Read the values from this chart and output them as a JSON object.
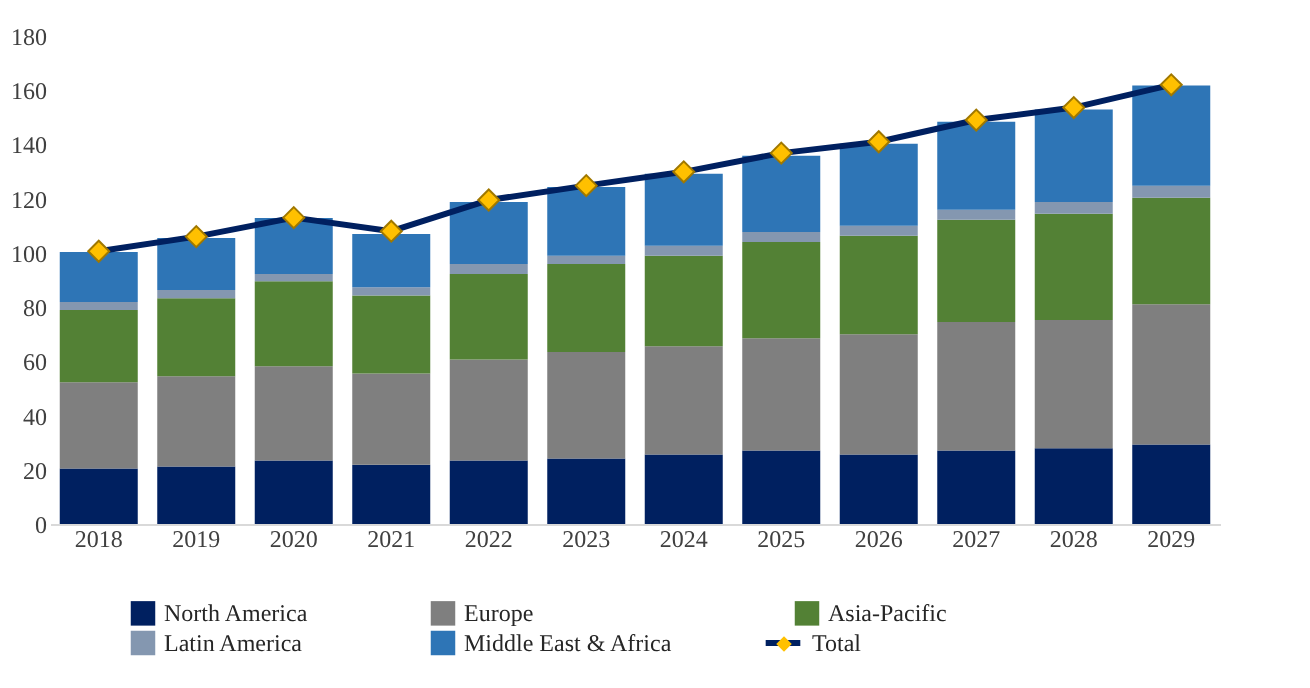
{
  "chart_data": {
    "type": "bar",
    "stacked": true,
    "categories": [
      "2018",
      "2019",
      "2020",
      "2021",
      "2022",
      "2023",
      "2024",
      "2025",
      "2026",
      "2027",
      "2028",
      "2029"
    ],
    "series": [
      {
        "name": "North America",
        "color": "#002060",
        "values": [
          20.5,
          21.2,
          23.4,
          21.9,
          23.4,
          24.2,
          25.6,
          27.1,
          25.6,
          27.1,
          27.9,
          29.3
        ]
      },
      {
        "name": "Europe",
        "color": "#7f7f7f",
        "values": [
          31.8,
          33.3,
          34.8,
          33.6,
          37.3,
          39.2,
          40.0,
          41.4,
          44.4,
          47.4,
          47.3,
          51.8
        ]
      },
      {
        "name": "Asia-Pacific",
        "color": "#538135",
        "values": [
          26.6,
          28.8,
          31.3,
          28.8,
          31.5,
          32.5,
          33.3,
          35.5,
          36.3,
          37.7,
          39.2,
          39.2
        ]
      },
      {
        "name": "Latin America",
        "color": "#8497b0",
        "values": [
          3.0,
          3.0,
          2.7,
          3.0,
          3.7,
          3.0,
          3.7,
          3.7,
          3.7,
          3.7,
          4.4,
          4.5
        ]
      },
      {
        "name": "Middle East & Africa",
        "color": "#2e75b6",
        "values": [
          18.4,
          19.2,
          20.7,
          19.7,
          22.9,
          25.4,
          26.6,
          28.1,
          30.3,
          32.5,
          34.1,
          36.9
        ]
      },
      {
        "name": "Total",
        "type": "line",
        "color": "#002060",
        "marker": "diamond",
        "values": [
          100.6,
          106.0,
          113.0,
          108.0,
          119.5,
          124.8,
          129.9,
          136.8,
          141.0,
          149.0,
          153.6,
          162.0
        ]
      }
    ],
    "ylim": [
      0,
      180
    ],
    "yticks": [
      0,
      20,
      40,
      60,
      80,
      100,
      120,
      140,
      160,
      180
    ],
    "grid": false,
    "legend": "bottom"
  }
}
